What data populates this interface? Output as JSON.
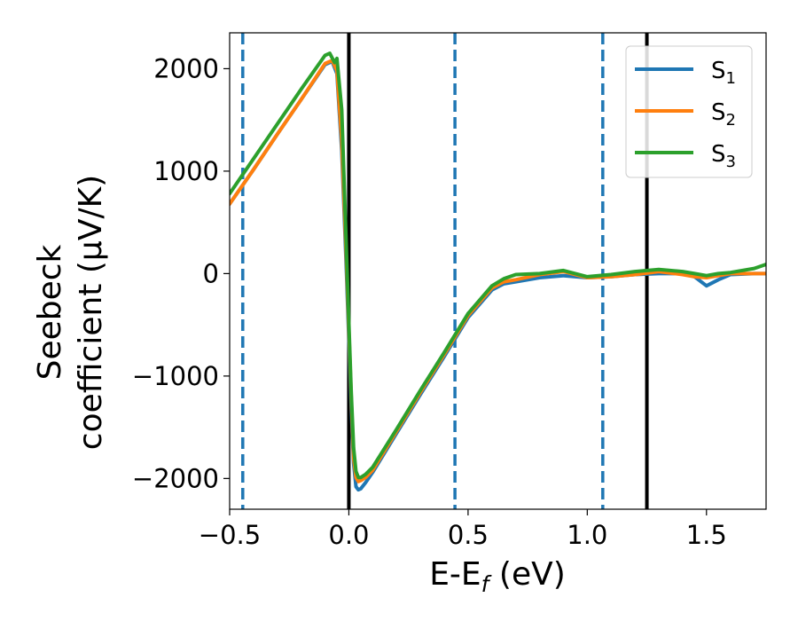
{
  "chart_data": {
    "type": "line",
    "xlabel": {
      "main": "E-E",
      "sub": "f",
      "unit": " (eV)"
    },
    "ylabel": {
      "line1": "Seebeck",
      "line2": "coefficient  (μV/K)"
    },
    "xlim": [
      -0.5,
      1.75
    ],
    "ylim": [
      -2300,
      2350
    ],
    "xticks": [
      -0.5,
      0.0,
      0.5,
      1.0,
      1.5
    ],
    "xtick_labels": [
      "−0.5",
      "0.0",
      "0.5",
      "1.0",
      "1.5"
    ],
    "yticks": [
      -2000,
      -1000,
      0,
      1000,
      2000
    ],
    "ytick_labels": [
      "−2000",
      "−1000",
      "0",
      "1000",
      "2000"
    ],
    "grid": false,
    "legend_position": "top-right",
    "vlines": [
      {
        "x": -0.445,
        "style": "dashed",
        "color": "#1f77b4"
      },
      {
        "x": 0.0,
        "style": "solid",
        "color": "#000000"
      },
      {
        "x": 0.445,
        "style": "dashed",
        "color": "#1f77b4"
      },
      {
        "x": 1.065,
        "style": "dashed",
        "color": "#1f77b4"
      },
      {
        "x": 1.25,
        "style": "solid",
        "color": "#000000"
      }
    ],
    "series": [
      {
        "name": "S",
        "sub": "1",
        "color": "#1f77b4",
        "x": [
          -0.5,
          -0.4,
          -0.3,
          -0.2,
          -0.1,
          -0.07,
          -0.05,
          -0.03,
          -0.01,
          0.01,
          0.02,
          0.03,
          0.04,
          0.05,
          0.07,
          0.1,
          0.2,
          0.3,
          0.4,
          0.5,
          0.6,
          0.65,
          0.7,
          0.8,
          0.9,
          1.0,
          1.1,
          1.2,
          1.3,
          1.4,
          1.45,
          1.5,
          1.55,
          1.6,
          1.7,
          1.75
        ],
        "y": [
          680,
          1015,
          1360,
          1700,
          2040,
          2070,
          1950,
          1200,
          0,
          -1300,
          -1850,
          -2080,
          -2110,
          -2100,
          -2040,
          -1940,
          -1560,
          -1180,
          -810,
          -430,
          -160,
          -100,
          -80,
          -40,
          -20,
          -40,
          -30,
          -10,
          0,
          0,
          -30,
          -120,
          -60,
          -10,
          0,
          0
        ]
      },
      {
        "name": "S",
        "sub": "2",
        "color": "#ff7f0e",
        "x": [
          -0.5,
          -0.4,
          -0.3,
          -0.2,
          -0.1,
          -0.07,
          -0.05,
          -0.03,
          -0.01,
          0.01,
          0.02,
          0.03,
          0.04,
          0.05,
          0.07,
          0.1,
          0.2,
          0.3,
          0.4,
          0.5,
          0.6,
          0.65,
          0.7,
          0.8,
          0.9,
          1.0,
          1.1,
          1.2,
          1.3,
          1.4,
          1.45,
          1.5,
          1.55,
          1.6,
          1.7,
          1.75
        ],
        "y": [
          680,
          1015,
          1360,
          1700,
          2050,
          2080,
          1980,
          1300,
          100,
          -1200,
          -1800,
          -1990,
          -2030,
          -2020,
          -1990,
          -1920,
          -1540,
          -1160,
          -790,
          -410,
          -140,
          -80,
          -60,
          -10,
          20,
          -40,
          -30,
          -10,
          20,
          -10,
          -30,
          -40,
          -20,
          0,
          0,
          0
        ]
      },
      {
        "name": "S",
        "sub": "3",
        "color": "#2ca02c",
        "x": [
          -0.5,
          -0.4,
          -0.3,
          -0.2,
          -0.1,
          -0.08,
          -0.06,
          -0.05,
          -0.03,
          -0.01,
          0.01,
          0.02,
          0.03,
          0.04,
          0.05,
          0.07,
          0.1,
          0.2,
          0.3,
          0.4,
          0.5,
          0.6,
          0.65,
          0.7,
          0.8,
          0.9,
          1.0,
          1.1,
          1.2,
          1.3,
          1.4,
          1.45,
          1.5,
          1.55,
          1.6,
          1.7,
          1.75
        ],
        "y": [
          780,
          1120,
          1460,
          1800,
          2130,
          2150,
          2060,
          2100,
          1600,
          200,
          -1150,
          -1700,
          -1930,
          -1990,
          -1990,
          -1960,
          -1890,
          -1520,
          -1140,
          -770,
          -390,
          -120,
          -50,
          -10,
          0,
          30,
          -30,
          -10,
          20,
          40,
          20,
          0,
          -20,
          0,
          10,
          50,
          90
        ]
      }
    ]
  }
}
